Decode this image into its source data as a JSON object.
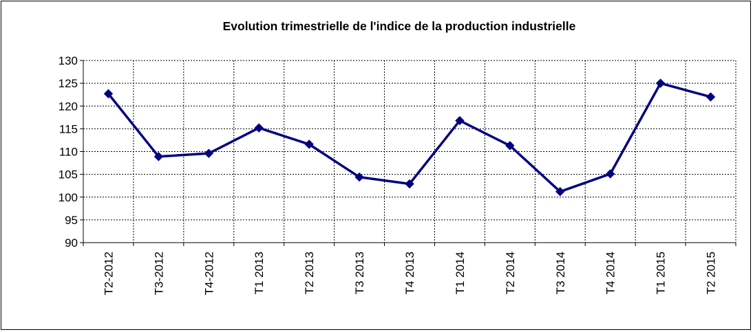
{
  "chart_data": {
    "type": "line",
    "title": "Evolution  trimestrielle de l'indice de la production industrielle",
    "xlabel": "",
    "ylabel": "",
    "categories": [
      "T2-2012",
      "T3-2012",
      "T4-2012",
      "T1 2013",
      "T2 2013",
      "T3 2013",
      "T4 2013",
      "T1 2014",
      "T2 2014",
      "T3 2014",
      "T4 2014",
      "T1 2015",
      "T2 2015"
    ],
    "series": [
      {
        "values": [
          122.7,
          108.9,
          109.6,
          115.2,
          111.6,
          104.4,
          102.9,
          116.8,
          111.3,
          101.2,
          105.1,
          125.0,
          122.0
        ],
        "color": "#000080"
      }
    ],
    "ylim": [
      90,
      130
    ],
    "yticks": [
      90,
      95,
      100,
      105,
      110,
      115,
      120,
      125,
      130
    ],
    "grid": true,
    "legend": "none",
    "marker": "diamond"
  }
}
